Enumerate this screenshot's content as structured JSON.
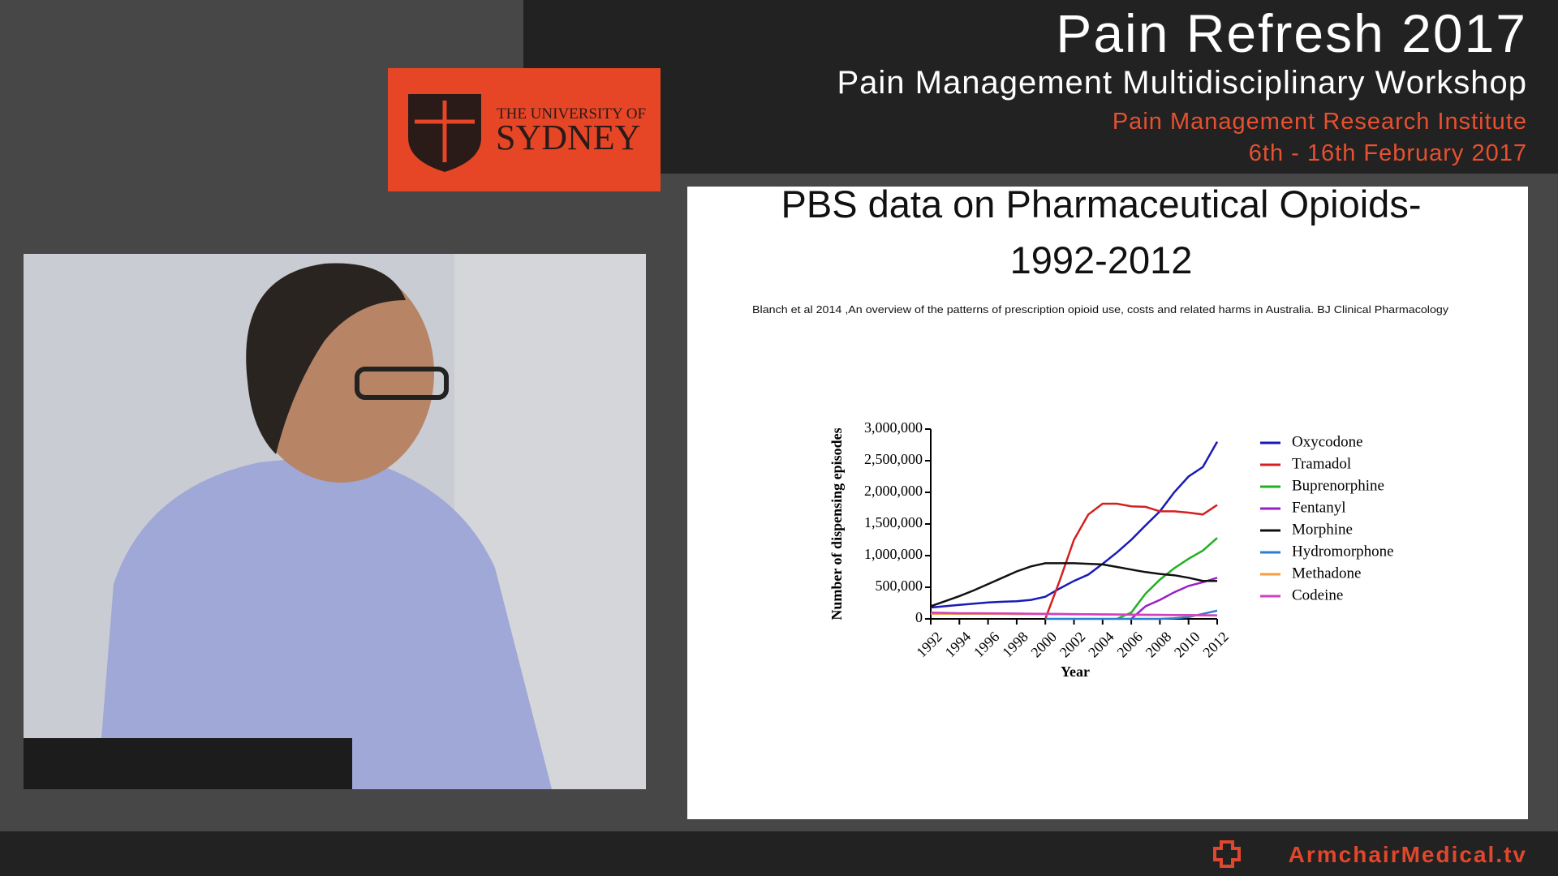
{
  "header": {
    "title": "Pain Refresh 2017",
    "subtitle": "Pain Management Multidisciplinary Workshop",
    "institute": "Pain Management Research Institute",
    "dates": "6th - 16th February 2017"
  },
  "logo": {
    "line1": "THE UNIVERSITY OF",
    "line2": "SYDNEY"
  },
  "slide": {
    "title_line1": "PBS data on Pharmaceutical Opioids-",
    "title_line2": "1992-2012",
    "citation": "Blanch et al 2014 ,An overview of the patterns of prescription opioid use, costs and related harms in Australia. BJ Clinical Pharmacology"
  },
  "chart_data": {
    "type": "line",
    "y_label": "Number of dispensing episodes",
    "x_label": "Year",
    "x": [
      1992,
      1993,
      1994,
      1995,
      1996,
      1997,
      1998,
      1999,
      2000,
      2001,
      2002,
      2003,
      2004,
      2005,
      2006,
      2007,
      2008,
      2009,
      2010,
      2011,
      2012
    ],
    "xlim": [
      1992,
      2012
    ],
    "xticks": [
      1992,
      1994,
      1996,
      1998,
      2000,
      2002,
      2004,
      2006,
      2008,
      2010,
      2012
    ],
    "ylim": [
      0,
      3000000
    ],
    "yticks": [
      0,
      {
        "value": 500000,
        "label": "500,000"
      },
      {
        "value": 1000000,
        "label": "1,000,000"
      },
      {
        "value": 1500000,
        "label": "1,500,000"
      },
      {
        "value": 2000000,
        "label": "2,000,000"
      },
      {
        "value": 2500000,
        "label": "2,500,000"
      },
      {
        "value": 3000000,
        "label": "3,000,000"
      }
    ],
    "series": [
      {
        "name": "Oxycodone",
        "color": "#1a1ab8",
        "values": [
          180000,
          200000,
          220000,
          240000,
          260000,
          270000,
          280000,
          300000,
          350000,
          480000,
          600000,
          700000,
          870000,
          1050000,
          1250000,
          1480000,
          1700000,
          2000000,
          2250000,
          2400000,
          2800000
        ]
      },
      {
        "name": "Tramadol",
        "color": "#d42020",
        "values": [
          null,
          null,
          null,
          null,
          null,
          null,
          null,
          null,
          0,
          600000,
          1250000,
          1650000,
          1820000,
          1820000,
          1780000,
          1770000,
          1700000,
          1700000,
          1680000,
          1650000,
          1800000
        ]
      },
      {
        "name": "Buprenorphine",
        "color": "#22b022",
        "values": [
          null,
          null,
          null,
          null,
          null,
          null,
          null,
          null,
          null,
          null,
          null,
          null,
          null,
          0,
          100000,
          400000,
          620000,
          800000,
          950000,
          1080000,
          1280000
        ]
      },
      {
        "name": "Fentanyl",
        "color": "#9a1ec8",
        "values": [
          null,
          null,
          null,
          null,
          null,
          null,
          null,
          null,
          null,
          null,
          null,
          null,
          null,
          null,
          0,
          200000,
          300000,
          420000,
          520000,
          580000,
          650000
        ]
      },
      {
        "name": "Morphine",
        "color": "#111111",
        "values": [
          200000,
          280000,
          360000,
          450000,
          550000,
          650000,
          750000,
          830000,
          880000,
          880000,
          880000,
          870000,
          860000,
          820000,
          780000,
          740000,
          710000,
          690000,
          650000,
          600000,
          600000
        ]
      },
      {
        "name": "Hydromorphone",
        "color": "#2a7fd0",
        "values": [
          null,
          null,
          null,
          null,
          null,
          null,
          null,
          null,
          0,
          0,
          0,
          0,
          0,
          0,
          0,
          0,
          0,
          10000,
          30000,
          80000,
          130000
        ]
      },
      {
        "name": "Methadone",
        "color": "#f0a040",
        "values": [
          80000,
          80000,
          80000,
          80000,
          80000,
          78000,
          76000,
          75000,
          74000,
          72000,
          70000,
          70000,
          68000,
          66000,
          64000,
          62000,
          60000,
          58000,
          56000,
          54000,
          52000
        ]
      },
      {
        "name": "Codeine",
        "color": "#d040c0",
        "values": [
          100000,
          95000,
          90000,
          90000,
          88000,
          86000,
          84000,
          82000,
          80000,
          78000,
          76000,
          74000,
          72000,
          70000,
          68000,
          66000,
          64000,
          62000,
          60000,
          58000,
          56000
        ]
      }
    ]
  },
  "footer": {
    "brand": "ArmchairMedical.tv"
  }
}
